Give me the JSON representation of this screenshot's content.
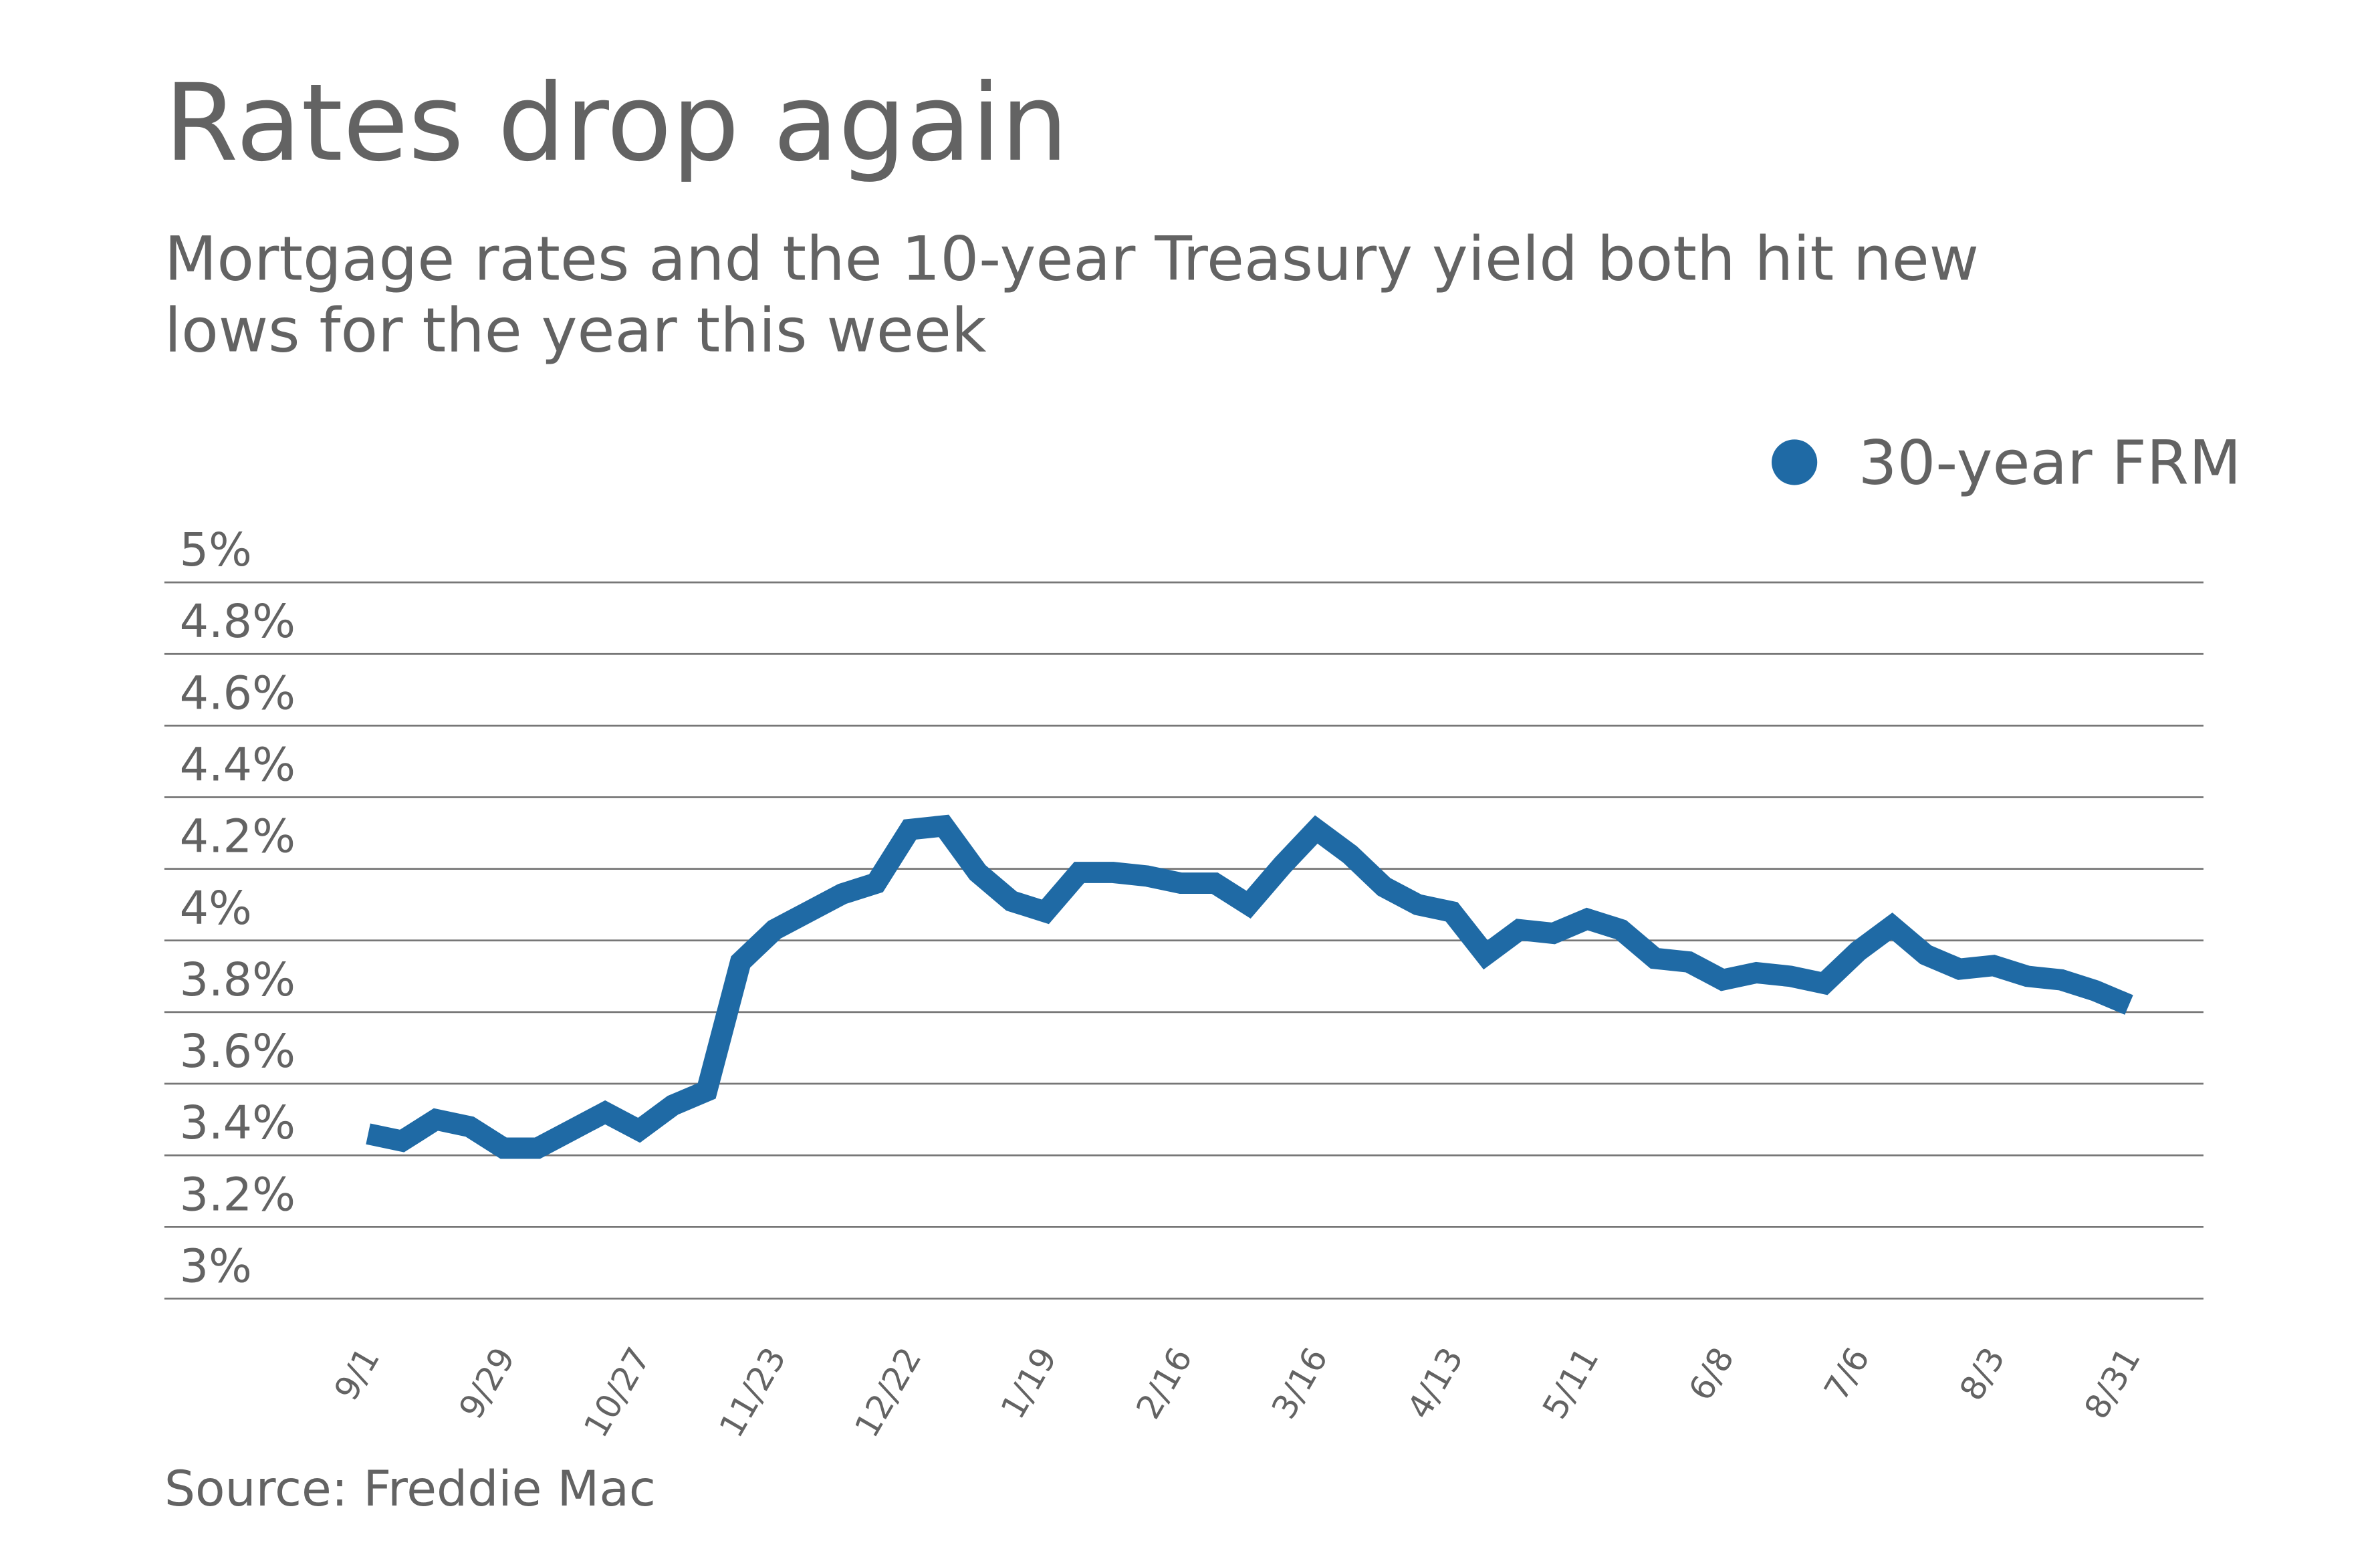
{
  "chart_data": {
    "type": "line",
    "title": "Rates drop again",
    "subtitle": [
      "Mortgage rates and the 10-year Treasury yield both hit new",
      "lows for the year this week"
    ],
    "source": "Source: Freddie Mac",
    "categories": [
      "9/1",
      null,
      null,
      null,
      "9/29",
      null,
      null,
      null,
      "10/27",
      null,
      null,
      null,
      "11/23",
      null,
      null,
      null,
      "12/22",
      null,
      null,
      null,
      "1/19",
      null,
      null,
      null,
      "2/16",
      null,
      null,
      null,
      "3/16",
      null,
      null,
      null,
      "4/13",
      null,
      null,
      null,
      "5/11",
      null,
      null,
      null,
      "6/8",
      null,
      null,
      null,
      "7/6",
      null,
      null,
      null,
      "8/3",
      null,
      null,
      null,
      "8/31"
    ],
    "series": [
      {
        "name": "30-year FRM",
        "color": "#1f6aa5",
        "values": [
          3.46,
          3.44,
          3.5,
          3.48,
          3.42,
          3.42,
          3.47,
          3.52,
          3.47,
          3.54,
          3.58,
          3.94,
          4.03,
          4.08,
          4.13,
          4.16,
          4.31,
          4.32,
          4.19,
          4.11,
          4.08,
          4.19,
          4.19,
          4.18,
          4.16,
          4.16,
          4.1,
          4.21,
          4.31,
          4.24,
          4.15,
          4.1,
          4.08,
          3.96,
          4.03,
          4.02,
          4.06,
          4.03,
          3.95,
          3.94,
          3.89,
          3.91,
          3.9,
          3.88,
          3.97,
          4.04,
          3.96,
          3.92,
          3.93,
          3.9,
          3.89,
          3.86,
          3.82
        ]
      }
    ],
    "ylim": [
      3,
      5
    ],
    "yticks": [
      {
        "value": 3,
        "label": "3%"
      },
      {
        "value": 3.2,
        "label": "3.2%"
      },
      {
        "value": 3.4,
        "label": "3.4%"
      },
      {
        "value": 3.6,
        "label": "3.6%"
      },
      {
        "value": 3.8,
        "label": "3.8%"
      },
      {
        "value": 4,
        "label": "4%"
      },
      {
        "value": 4.2,
        "label": "4.2%"
      },
      {
        "value": 4.4,
        "label": "4.4%"
      },
      {
        "value": 4.6,
        "label": "4.6%"
      },
      {
        "value": 4.8,
        "label": "4.8%"
      },
      {
        "value": 5,
        "label": "5%"
      }
    ],
    "grid": true,
    "legend": "top-right"
  }
}
